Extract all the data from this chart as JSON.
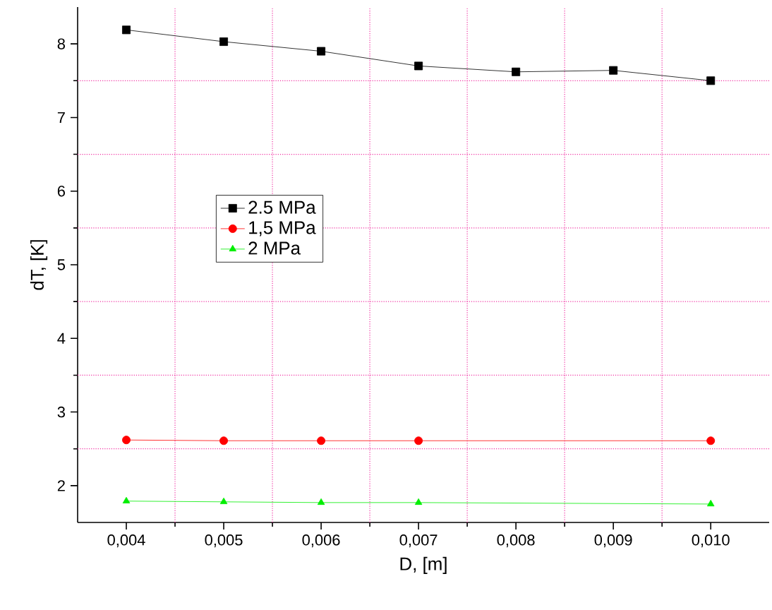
{
  "chart_data": {
    "type": "line",
    "xlabel": "D, [m]",
    "ylabel": "dT, [K]",
    "xlim": [
      0.0035,
      0.0106
    ],
    "ylim": [
      1.5,
      8.5
    ],
    "xticks": [
      {
        "value": 0.004,
        "label": "0,004"
      },
      {
        "value": 0.005,
        "label": "0,005"
      },
      {
        "value": 0.006,
        "label": "0,006"
      },
      {
        "value": 0.007,
        "label": "0,007"
      },
      {
        "value": 0.008,
        "label": "0,008"
      },
      {
        "value": 0.009,
        "label": "0,009"
      },
      {
        "value": 0.01,
        "label": "0,010"
      }
    ],
    "yticks": [
      2,
      3,
      4,
      5,
      6,
      7,
      8
    ],
    "legend": "center left",
    "line_style": "solid",
    "ref_lines": [
      {
        "axis": "x",
        "value": 0.0045,
        "color": "#f033a3",
        "line_style": "dotted"
      },
      {
        "axis": "x",
        "value": 0.0055,
        "color": "#f033a3",
        "line_style": "dotted"
      },
      {
        "axis": "x",
        "value": 0.0065,
        "color": "#f033a3",
        "line_style": "dotted"
      },
      {
        "axis": "x",
        "value": 0.0075,
        "color": "#f033a3",
        "line_style": "dotted"
      },
      {
        "axis": "x",
        "value": 0.0085,
        "color": "#f033a3",
        "line_style": "dotted"
      },
      {
        "axis": "x",
        "value": 0.0095,
        "color": "#f033a3",
        "line_style": "dotted"
      },
      {
        "axis": "y",
        "value": 2.5,
        "color": "#f033a3",
        "line_style": "dotted"
      },
      {
        "axis": "y",
        "value": 3.5,
        "color": "#f033a3",
        "line_style": "dotted"
      },
      {
        "axis": "y",
        "value": 4.5,
        "color": "#f033a3",
        "line_style": "dotted"
      },
      {
        "axis": "y",
        "value": 5.5,
        "color": "#f033a3",
        "line_style": "dotted"
      },
      {
        "axis": "y",
        "value": 6.5,
        "color": "#f033a3",
        "line_style": "dotted"
      },
      {
        "axis": "y",
        "value": 7.5,
        "color": "#f033a3",
        "line_style": "dotted"
      }
    ],
    "series": [
      {
        "name": "2.5 MPa",
        "color": "#000000",
        "marker": "square",
        "x": [
          0.004,
          0.005,
          0.006,
          0.007,
          0.008,
          0.009,
          0.01
        ],
        "values": [
          8.19,
          8.03,
          7.9,
          7.7,
          7.62,
          7.64,
          7.5
        ]
      },
      {
        "name": "1,5 MPa",
        "color": "#ff0000",
        "marker": "circle",
        "x": [
          0.004,
          0.005,
          0.006,
          0.007,
          0.01
        ],
        "values": [
          2.62,
          2.61,
          2.61,
          2.61,
          2.61
        ]
      },
      {
        "name": "2 MPa",
        "color": "#00ee00",
        "marker": "triangle",
        "x": [
          0.004,
          0.005,
          0.006,
          0.007,
          0.01
        ],
        "values": [
          1.79,
          1.78,
          1.77,
          1.77,
          1.75
        ]
      }
    ]
  }
}
